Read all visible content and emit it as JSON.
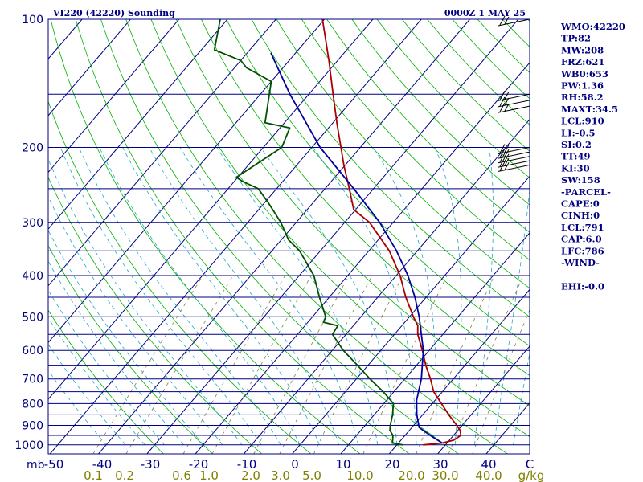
{
  "header": {
    "station": "VI220 (42220) Sounding",
    "time": "0000Z  1 MAY 25"
  },
  "indices": [
    "WMO:42220",
    "TP:82",
    "MW:208",
    "FRZ:621",
    "WB0:653",
    "PW:1.36",
    "RH:58.2",
    "MAXT:34.5",
    "LCL:910",
    "LI:-0.5",
    "SI:0.2",
    "TT:49",
    "KI:30",
    "SW:158",
    "-PARCEL-",
    "CAPE:0",
    "CINH:0",
    "LCL:791",
    "CAP:6.0",
    "LFC:786",
    "-WIND-",
    "",
    "EHI:-0.0"
  ],
  "chart_data": {
    "type": "line",
    "chart_kind": "skew-T log-P sounding",
    "pressure_axis": {
      "unit_label": "mb",
      "scale": "log",
      "range": [
        1050,
        100
      ],
      "ticks": [
        100,
        200,
        300,
        400,
        500,
        600,
        700,
        800,
        900,
        1000
      ],
      "tick_labels": [
        "100",
        "200",
        "300",
        "400",
        "500",
        "600",
        "700",
        "800",
        "900",
        "1000"
      ]
    },
    "temperature_axis": {
      "unit": "C",
      "ticks": [
        -50,
        -40,
        -30,
        -20,
        -10,
        0,
        10,
        20,
        30,
        40
      ],
      "tick_labels": [
        "-50",
        "-40",
        "-30",
        "-20",
        "-10",
        "0",
        "10",
        "20",
        "30",
        "40"
      ],
      "end_label": "C"
    },
    "mixing_ratio_axis": {
      "unit": "g/kg",
      "ticks": [
        0.1,
        0.2,
        0.6,
        1.0,
        2.0,
        3.0,
        5.0,
        10.0,
        20.0,
        30.0,
        40.0
      ],
      "tick_labels": [
        "0.1",
        "0.2",
        "0.6",
        "1.0",
        "2.0",
        "3.0",
        "5.0",
        "10.0",
        "20.0",
        "30.0",
        "40.0"
      ]
    },
    "series": [
      {
        "kind": "temperature",
        "color": "#aa0000",
        "points": [
          [
            1000,
            25.4
          ],
          [
            990,
            29.0
          ],
          [
            975,
            30.9
          ],
          [
            950,
            31.5
          ],
          [
            925,
            30.5
          ],
          [
            900,
            28.9
          ],
          [
            850,
            25.4
          ],
          [
            800,
            21.9
          ],
          [
            750,
            18.2
          ],
          [
            700,
            15.3
          ],
          [
            650,
            11.9
          ],
          [
            600,
            8.6
          ],
          [
            550,
            4.8
          ],
          [
            525,
            3.3
          ],
          [
            500,
            0.8
          ],
          [
            450,
            -4.2
          ],
          [
            400,
            -9.2
          ],
          [
            350,
            -15.8
          ],
          [
            300,
            -24.9
          ],
          [
            280,
            -30.4
          ],
          [
            250,
            -35.0
          ],
          [
            220,
            -40.3
          ],
          [
            200,
            -44.0
          ],
          [
            175,
            -49.2
          ],
          [
            150,
            -55.0
          ],
          [
            125,
            -61.8
          ],
          [
            100,
            -70.4
          ]
        ]
      },
      {
        "kind": "dewpoint",
        "color": "#005000",
        "points": [
          [
            1000,
            21.2
          ],
          [
            990,
            18.7
          ],
          [
            975,
            18.3
          ],
          [
            950,
            17.5
          ],
          [
            925,
            16.0
          ],
          [
            900,
            15.2
          ],
          [
            850,
            13.8
          ],
          [
            800,
            12.0
          ],
          [
            750,
            7.8
          ],
          [
            700,
            2.8
          ],
          [
            650,
            -2.2
          ],
          [
            600,
            -7.7
          ],
          [
            550,
            -12.8
          ],
          [
            525,
            -13.2
          ],
          [
            515,
            -16.8
          ],
          [
            500,
            -17.3
          ],
          [
            450,
            -22.0
          ],
          [
            400,
            -27.0
          ],
          [
            350,
            -34.3
          ],
          [
            330,
            -38.5
          ],
          [
            300,
            -43.2
          ],
          [
            270,
            -49.2
          ],
          [
            250,
            -53.8
          ],
          [
            240,
            -58.5
          ],
          [
            235,
            -60.3
          ],
          [
            200,
            -56.2
          ],
          [
            180,
            -58.0
          ],
          [
            175,
            -64.0
          ],
          [
            140,
            -70.0
          ],
          [
            130,
            -77.5
          ],
          [
            125,
            -80.0
          ],
          [
            118,
            -87.3
          ],
          [
            100,
            -91.5
          ]
        ]
      },
      {
        "kind": "parcel",
        "color": "#0000a0",
        "points": [
          [
            990,
            29.0
          ],
          [
            950,
            25.2
          ],
          [
            910,
            21.5
          ],
          [
            850,
            18.8
          ],
          [
            800,
            16.8
          ],
          [
            786,
            16.2
          ],
          [
            700,
            13.4
          ],
          [
            600,
            8.8
          ],
          [
            500,
            2.0
          ],
          [
            450,
            -2.3
          ],
          [
            400,
            -7.6
          ],
          [
            350,
            -14.3
          ],
          [
            300,
            -22.8
          ],
          [
            250,
            -34.1
          ],
          [
            200,
            -48.3
          ],
          [
            150,
            -63.9
          ],
          [
            120,
            -75.1
          ]
        ]
      }
    ],
    "wind_barbs": [
      {
        "p": 100
      },
      {
        "p": 150
      },
      {
        "p": 155
      },
      {
        "p": 160
      },
      {
        "p": 200
      },
      {
        "p": 205
      },
      {
        "p": 210
      },
      {
        "p": 215
      },
      {
        "p": 220
      }
    ]
  }
}
